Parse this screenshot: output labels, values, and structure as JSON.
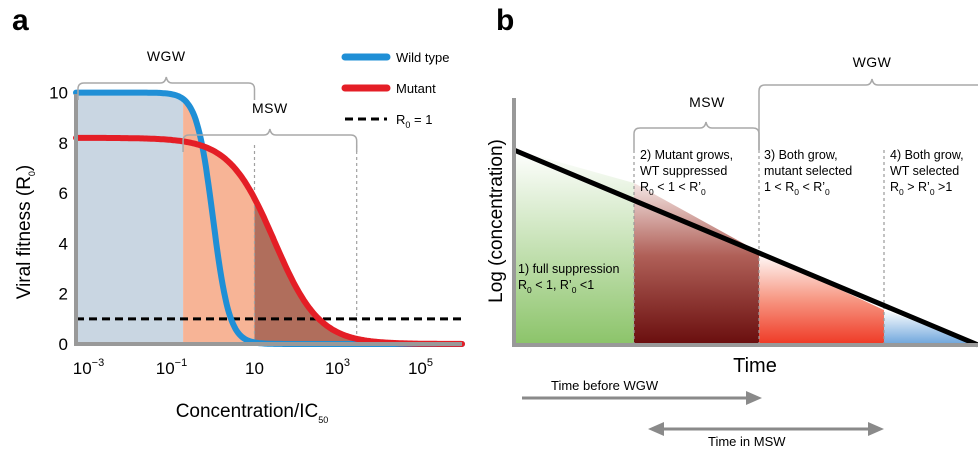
{
  "panel_a_label": "a",
  "panel_b_label": "b",
  "chart_data": [
    {
      "type": "line",
      "xscale": "log",
      "xlim": [
        0.0005,
        1000000
      ],
      "ylim": [
        0,
        10.5
      ],
      "x_ticks": [
        {
          "value": 0.001,
          "base": "10",
          "exp": "−3"
        },
        {
          "value": 0.1,
          "base": "10",
          "exp": "−1"
        },
        {
          "value": 10,
          "base": "10",
          "exp": ""
        },
        {
          "value": 1000,
          "base": "10",
          "exp": "3"
        },
        {
          "value": 100000,
          "base": "10",
          "exp": "5"
        }
      ],
      "y_ticks": [
        0,
        2,
        4,
        6,
        8,
        10
      ],
      "ylabel_main": "Viral fitness  (R",
      "ylabel_sub": "0",
      "ylabel_close": ")",
      "xlabel_main": "Concentration/IC",
      "xlabel_sub": "50",
      "series": [
        {
          "name": "Wild type",
          "color": "#1f8fd6",
          "r0_max": 10,
          "ic50": 1,
          "hill": 2.2
        },
        {
          "name": "Mutant",
          "color": "#e41e26",
          "r0_max": 8.2,
          "ic50": 30,
          "hill": 0.8
        }
      ],
      "threshold": {
        "name_main": "R",
        "name_sub": "0",
        "name_rest": " = 1",
        "y": 1,
        "color": "#000000"
      },
      "regions": [
        {
          "id": "wt-dominant",
          "color": "#c9d6e2",
          "x_from": 0.0005,
          "x_to": 0.19
        },
        {
          "id": "mutant-selected",
          "color": "#f7b496",
          "x_from": 0.19,
          "x_to": 10
        },
        {
          "id": "both-grow",
          "color": "#b06e5c",
          "x_from": 10,
          "x_to": 2900
        },
        {
          "id": "full-suppression",
          "color": "#9ccc74",
          "x_from": 2900,
          "x_to": 1000000
        }
      ],
      "brackets": [
        {
          "label": "WGW",
          "x_from": 0.0005,
          "x_to": 10
        },
        {
          "label": "MSW",
          "x_from": 0.19,
          "x_to": 2900
        }
      ]
    },
    {
      "type": "area",
      "ylabel": "Log (concentration)",
      "xlabel": "Time",
      "phases": [
        {
          "id": "phase-1",
          "lines": [
            [
              {
                "t": "1) full suppression"
              }
            ],
            [
              {
                "t": "R"
              },
              {
                "t": "0",
                "sub": true
              },
              {
                "t": " < 1, R’"
              },
              {
                "t": "0",
                "sub": true
              },
              {
                "t": " <1"
              }
            ]
          ]
        },
        {
          "id": "phase-2",
          "lines": [
            [
              {
                "t": "2) Mutant grows,"
              }
            ],
            [
              {
                "t": "WT suppressed"
              }
            ],
            [
              {
                "t": "R"
              },
              {
                "t": "0",
                "sub": true
              },
              {
                "t": " < 1 < R’"
              },
              {
                "t": "0",
                "sub": true
              }
            ]
          ]
        },
        {
          "id": "phase-3",
          "lines": [
            [
              {
                "t": "3) Both grow,"
              }
            ],
            [
              {
                "t": "mutant selected"
              }
            ],
            [
              {
                "t": "1 < R"
              },
              {
                "t": "0",
                "sub": true
              },
              {
                "t": " < R’"
              },
              {
                "t": "0",
                "sub": true
              }
            ]
          ]
        },
        {
          "id": "phase-4",
          "lines": [
            [
              {
                "t": "4) Both grow,"
              }
            ],
            [
              {
                "t": "WT selected"
              }
            ],
            [
              {
                "t": "R"
              },
              {
                "t": "0",
                "sub": true
              },
              {
                "t": " > R’"
              },
              {
                "t": "0",
                "sub": true
              },
              {
                "t": " >1"
              }
            ]
          ]
        }
      ],
      "brackets": [
        {
          "label": "MSW"
        },
        {
          "label": "WGW"
        }
      ],
      "arrows": [
        {
          "label": "Time before WGW",
          "direction": "right"
        },
        {
          "label": "Time in MSW",
          "direction": "both"
        }
      ]
    }
  ]
}
